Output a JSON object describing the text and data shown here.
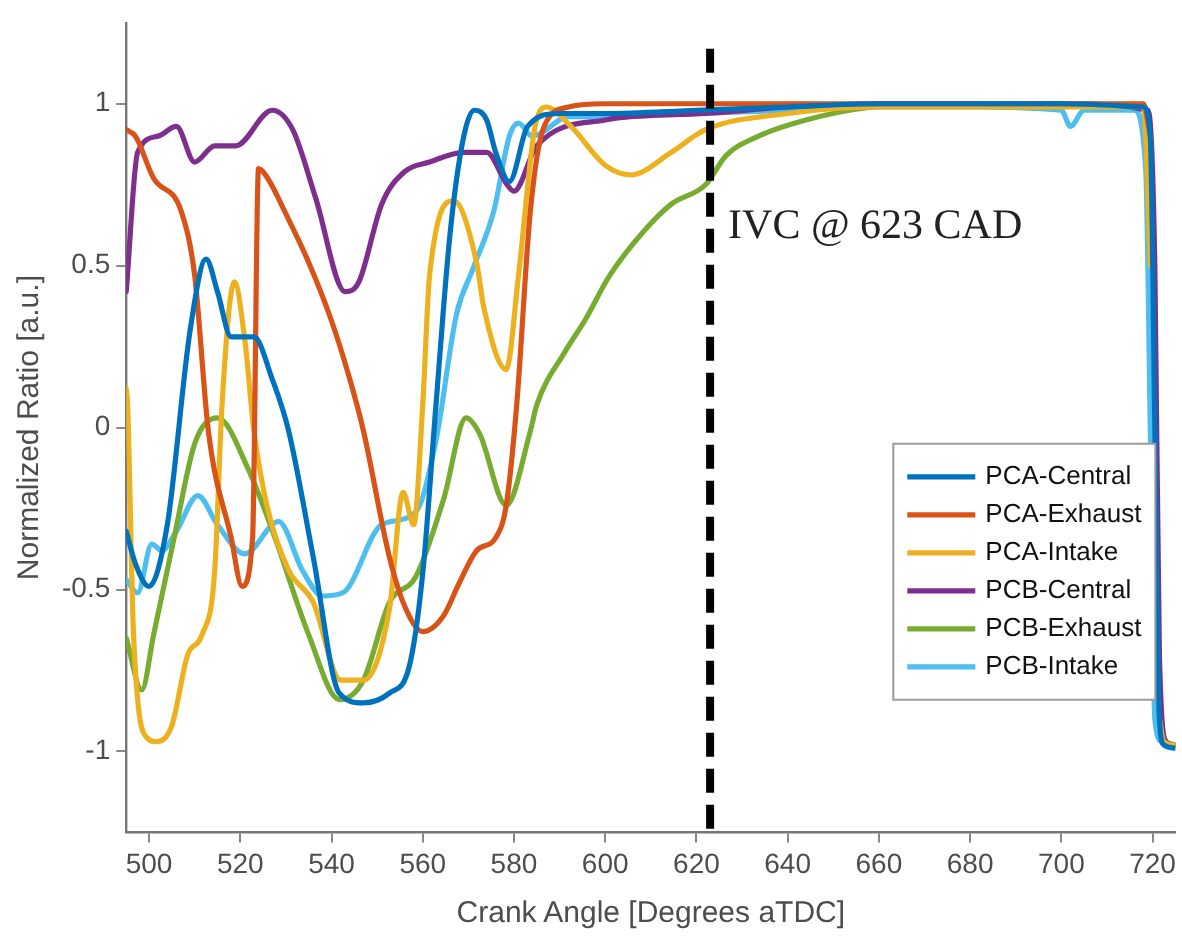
{
  "chart_data": {
    "type": "line",
    "xlabel": "Crank Angle [Degrees aTDC]",
    "ylabel": "Normalized Ratio [a.u.]",
    "xlim": [
      495,
      725
    ],
    "xticks": [
      500,
      520,
      540,
      560,
      580,
      600,
      620,
      640,
      660,
      680,
      700,
      720
    ],
    "ylim": [
      -1.25,
      1.25
    ],
    "yticks": [
      -1,
      -0.5,
      0,
      0.5,
      1
    ],
    "grid": false,
    "legend": "right",
    "marker": "none",
    "line_style": "solid",
    "ref_lines": [
      {
        "axis": "x",
        "value": 623,
        "label": "IVC @ 623 CAD",
        "color": "#000000",
        "line_style": "dashed"
      }
    ],
    "series": [
      {
        "name": "PCA-Central",
        "color": "#0072bd",
        "x": [
          495,
          497,
          500,
          504,
          509,
          512.5,
          515,
          518,
          523,
          527,
          530.6,
          536,
          541.7,
          547,
          552.7,
          557,
          560,
          562.9,
          566,
          569,
          571.3,
          574,
          576,
          579,
          583,
          590,
          600,
          620,
          640,
          660,
          680,
          700,
          718,
          719.5,
          720.5,
          721.5,
          722.5,
          725
        ],
        "values": [
          -0.32,
          -0.42,
          -0.49,
          -0.3,
          0.3,
          0.52,
          0.42,
          0.28,
          0.28,
          0.15,
          -0.01,
          -0.4,
          -0.82,
          -0.85,
          -0.82,
          -0.74,
          -0.45,
          0.07,
          0.6,
          0.9,
          0.98,
          0.95,
          0.85,
          0.76,
          0.93,
          0.97,
          0.97,
          0.98,
          0.99,
          1.0,
          1.0,
          1.0,
          0.99,
          0.9,
          0.0,
          -0.9,
          -0.98,
          -0.99
        ]
      },
      {
        "name": "PCA-Exhaust",
        "color": "#d95319",
        "x": [
          495,
          497,
          501,
          507,
          510,
          513,
          518,
          520.4,
          522.7,
          524,
          526,
          530,
          535,
          540,
          544,
          547,
          552.7,
          556,
          560,
          564.6,
          568,
          571.8,
          576,
          578.3,
          580.6,
          583.6,
          586.6,
          592,
          600,
          620,
          640,
          660,
          680,
          700,
          718,
          719.5
        ],
        "values": [
          0.92,
          0.9,
          0.77,
          0.67,
          0.47,
          -0.01,
          -0.34,
          -0.49,
          -0.34,
          0.8,
          0.77,
          0.66,
          0.51,
          0.33,
          0.15,
          -0.01,
          -0.4,
          -0.55,
          -0.63,
          -0.58,
          -0.48,
          -0.38,
          -0.34,
          -0.24,
          0.07,
          0.67,
          0.93,
          0.99,
          1.0,
          1.0,
          1.0,
          1.0,
          1.0,
          1.0,
          1.0,
          0.9
        ]
      },
      {
        "name": "PCA-Intake",
        "color": "#edb120",
        "x": [
          495,
          495.3,
          496.6,
          499.7,
          501.5,
          505,
          508.5,
          511.6,
          514.4,
          516,
          518.7,
          521,
          523,
          526,
          530.6,
          536,
          542,
          547,
          552.7,
          555.7,
          558,
          560,
          561.5,
          566.8,
          571.8,
          573.4,
          578.3,
          581,
          584.5,
          587,
          592.5,
          600,
          605.6,
          614.5,
          622,
          640,
          660,
          680,
          700,
          718,
          719.5,
          720.5,
          721.5,
          722.5,
          725
        ],
        "values": [
          0.12,
          0.07,
          -0.64,
          -0.96,
          -0.97,
          -0.92,
          -0.7,
          -0.64,
          -0.44,
          0.07,
          0.45,
          0.27,
          -0.01,
          -0.25,
          -0.44,
          -0.54,
          -0.78,
          -0.78,
          -0.56,
          -0.2,
          -0.3,
          0.07,
          0.47,
          0.7,
          0.51,
          0.37,
          0.18,
          0.47,
          0.92,
          0.99,
          0.93,
          0.81,
          0.78,
          0.85,
          0.92,
          0.97,
          0.99,
          0.99,
          0.99,
          0.99,
          0.5,
          null,
          -0.9,
          -0.97,
          -0.98
        ]
      },
      {
        "name": "PCB-Central",
        "color": "#7e2f8e",
        "x": [
          495,
          497.5,
          502,
          506,
          510,
          514.4,
          519,
          527,
          531.5,
          536.5,
          543,
          546,
          551,
          556,
          561.5,
          569,
          574,
          578.5,
          580,
          585,
          600,
          622,
          640,
          660,
          680,
          700,
          719,
          720.5,
          721.5,
          723,
          725
        ],
        "values": [
          0.42,
          0.85,
          0.9,
          0.93,
          0.82,
          0.87,
          0.87,
          0.98,
          0.92,
          0.71,
          0.42,
          0.45,
          0.69,
          0.79,
          0.82,
          0.85,
          0.85,
          0.75,
          0.73,
          0.87,
          0.95,
          0.97,
          0.99,
          1.0,
          1.0,
          1.0,
          0.98,
          0.5,
          -0.7,
          -0.97,
          -0.98
        ]
      },
      {
        "name": "PCB-Exhaust",
        "color": "#77ac30",
        "x": [
          495,
          498.4,
          501,
          505.5,
          510,
          515,
          521.8,
          527.6,
          535,
          541.7,
          547,
          552.7,
          558.5,
          564.6,
          569.5,
          572.5,
          578.3,
          583.6,
          585,
          591,
          595.5,
          601,
          608.7,
          614.5,
          622,
          626.5,
          633.6,
          644,
          658.6,
          680,
          700,
          718,
          719.5,
          720.5,
          722,
          725
        ],
        "values": [
          -0.65,
          -0.81,
          -0.64,
          -0.34,
          -0.05,
          0.03,
          -0.13,
          -0.34,
          -0.64,
          -0.84,
          -0.78,
          -0.54,
          -0.46,
          -0.22,
          0.03,
          -0.02,
          -0.24,
          -0.01,
          0.07,
          0.23,
          0.33,
          0.47,
          0.61,
          0.69,
          0.75,
          0.84,
          0.9,
          0.95,
          0.99,
          1.0,
          1.0,
          0.99,
          0.6,
          null,
          -0.97,
          -0.98
        ]
      },
      {
        "name": "PCB-Intake",
        "color": "#4dbeee",
        "x": [
          495,
          497.5,
          500.6,
          502.8,
          506,
          510.7,
          515,
          521,
          528.4,
          533.6,
          538,
          542.5,
          551,
          558.5,
          562.9,
          567.4,
          571,
          575.6,
          579,
          581,
          584,
          592,
          600,
          620,
          640,
          660,
          680,
          700,
          702,
          705,
          716,
          718.5,
          719.5,
          720.5,
          722,
          725
        ],
        "values": [
          -0.47,
          -0.51,
          -0.36,
          -0.38,
          -0.32,
          -0.21,
          -0.3,
          -0.39,
          -0.29,
          -0.44,
          -0.52,
          -0.51,
          -0.3,
          -0.26,
          -0.04,
          0.35,
          0.49,
          0.67,
          0.9,
          0.94,
          0.9,
          0.96,
          0.96,
          0.97,
          0.98,
          0.99,
          0.99,
          0.98,
          0.93,
          0.98,
          0.98,
          0.8,
          0.0,
          -0.9,
          -0.97,
          -0.98
        ]
      }
    ]
  }
}
